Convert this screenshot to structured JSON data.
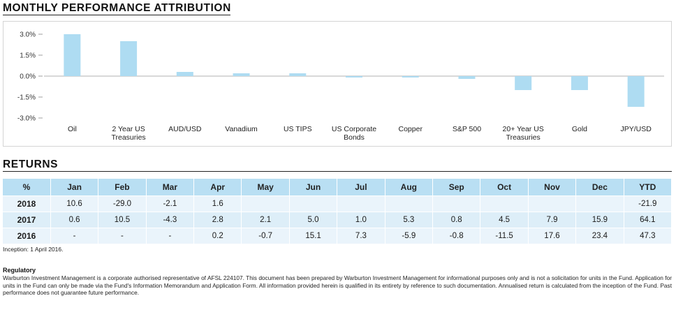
{
  "chart_section": {
    "title": "MONTHLY PERFORMANCE ATTRIBUTION"
  },
  "chart_data": {
    "type": "bar",
    "title": "MONTHLY PERFORMANCE ATTRIBUTION",
    "categories": [
      [
        "Oil"
      ],
      [
        "2 Year US",
        "Treasuries"
      ],
      [
        "AUD/USD"
      ],
      [
        "Vanadium"
      ],
      [
        "US TIPS"
      ],
      [
        "US Corporate",
        "Bonds"
      ],
      [
        "Copper"
      ],
      [
        "S&P 500"
      ],
      [
        "20+ Year US",
        "Treasuries"
      ],
      [
        "Gold"
      ],
      [
        "JPY/USD"
      ]
    ],
    "values": [
      3.0,
      2.5,
      0.3,
      0.2,
      0.2,
      -0.1,
      -0.1,
      -0.2,
      -1.0,
      -1.0,
      -2.2
    ],
    "yticks": [
      "3.0%",
      "1.5%",
      "0.0%",
      "-1.5%",
      "-3.0%"
    ],
    "ylim": [
      -3.0,
      3.0
    ],
    "bar_color": "#aedcf2",
    "grid": false
  },
  "returns": {
    "title": "RETURNS",
    "header": [
      "%",
      "Jan",
      "Feb",
      "Mar",
      "Apr",
      "May",
      "Jun",
      "Jul",
      "Aug",
      "Sep",
      "Oct",
      "Nov",
      "Dec",
      "YTD"
    ],
    "rows": [
      [
        "2018",
        "10.6",
        "-29.0",
        "-2.1",
        "1.6",
        "",
        "",
        "",
        "",
        "",
        "",
        "",
        "",
        "-21.9"
      ],
      [
        "2017",
        "0.6",
        "10.5",
        "-4.3",
        "2.8",
        "2.1",
        "5.0",
        "1.0",
        "5.3",
        "0.8",
        "4.5",
        "7.9",
        "15.9",
        "64.1"
      ],
      [
        "2016",
        "-",
        "-",
        "-",
        "0.2",
        "-0.7",
        "15.1",
        "7.3",
        "-5.9",
        "-0.8",
        "-11.5",
        "17.6",
        "23.4",
        "47.3"
      ]
    ],
    "inception": "Inception: 1 April 2016."
  },
  "regulatory": {
    "title": "Regulatory",
    "text": "Warburton Investment Management is a corporate authorised representative of AFSL 224107. This document has been prepared by Warburton Investment Management for informational purposes only and is not a solicitation for units in the Fund. Application for units in the Fund can only be made via the Fund's Information Memorandum and Application Form. All information provided herein is qualified in its entirety by reference to such documentation. Annualised return is calculated from the inception of the Fund. Past performance does not guarantee future performance."
  }
}
